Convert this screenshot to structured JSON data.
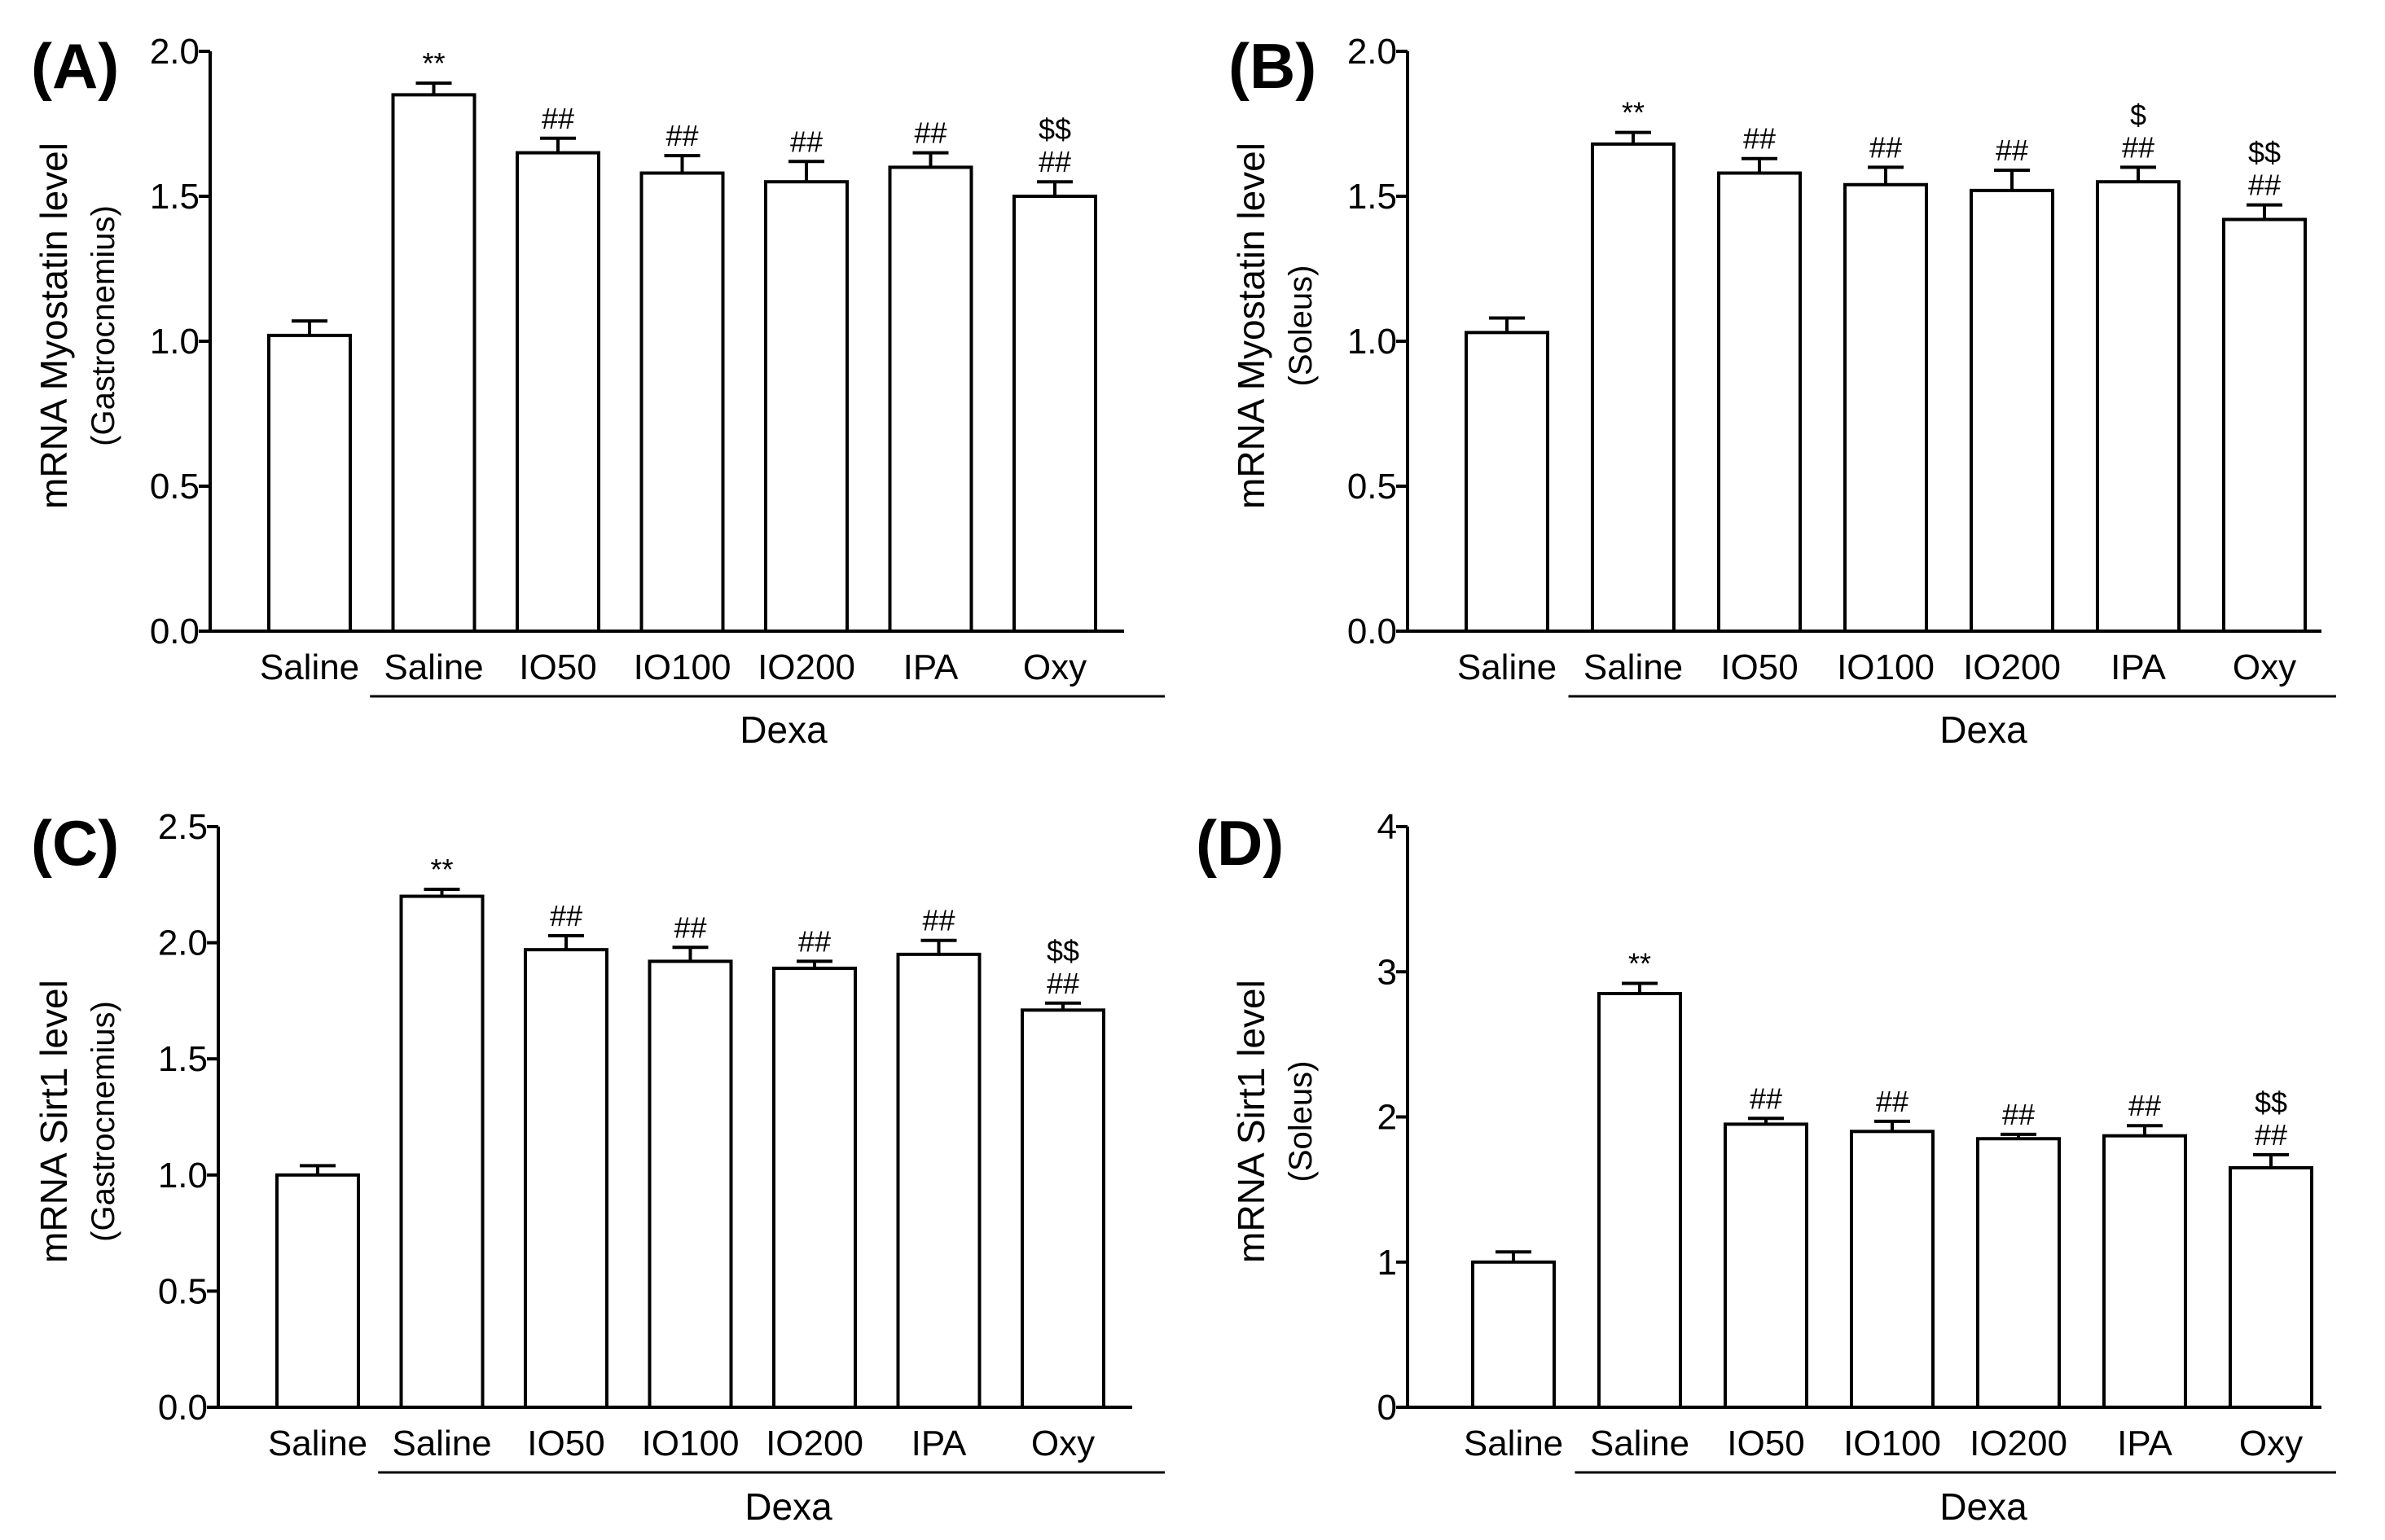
{
  "figure": {
    "panels": [
      {
        "id": "A",
        "panel_label": "(A)",
        "ylabel": "mRNA Myostatin level",
        "ysub": "(Gastrocnemius)",
        "group_label": "Dexa",
        "ticks": [
          "0.0",
          "0.5",
          "1.0",
          "1.5",
          "2.0"
        ]
      },
      {
        "id": "B",
        "panel_label": "(B)",
        "ylabel": "mRNA Myostatin level",
        "ysub": "(Soleus)",
        "group_label": "Dexa",
        "ticks": [
          "0.0",
          "0.5",
          "1.0",
          "1.5",
          "2.0"
        ]
      },
      {
        "id": "C",
        "panel_label": "(C)",
        "ylabel": "mRNA Sirt1 level",
        "ysub": "(Gastrocnemius)",
        "group_label": "Dexa",
        "ticks": [
          "0.0",
          "0.5",
          "1.0",
          "1.5",
          "2.0",
          "2.5"
        ]
      },
      {
        "id": "D",
        "panel_label": "(D)",
        "ylabel": "mRNA Sirt1 level",
        "ysub": "(Soleus)",
        "group_label": "Dexa",
        "ticks": [
          "0",
          "1",
          "2",
          "3",
          "4"
        ]
      }
    ]
  },
  "chart_data": [
    {
      "type": "bar",
      "panel": "(A)",
      "title": "",
      "xlabel": "Dexa",
      "ylabel": "mRNA Myostatin level (Gastrocnemius)",
      "categories": [
        "Saline",
        "Saline",
        "IO50",
        "IO100",
        "IO200",
        "IPA",
        "Oxy"
      ],
      "values": [
        1.02,
        1.85,
        1.65,
        1.58,
        1.55,
        1.6,
        1.5
      ],
      "errors": [
        0.05,
        0.04,
        0.05,
        0.06,
        0.07,
        0.05,
        0.05
      ],
      "annotations": [
        [],
        [
          "**"
        ],
        [
          "##"
        ],
        [
          "##"
        ],
        [
          "##"
        ],
        [
          "##"
        ],
        [
          "##",
          "$$"
        ]
      ],
      "ylim": [
        0,
        2.0
      ],
      "yticks": [
        0,
        0.5,
        1.0,
        1.5,
        2.0
      ],
      "group_bracket": {
        "label": "Dexa",
        "from_index": 1,
        "to_index": 6
      }
    },
    {
      "type": "bar",
      "panel": "(B)",
      "title": "",
      "xlabel": "Dexa",
      "ylabel": "mRNA Myostatin level (Soleus)",
      "categories": [
        "Saline",
        "Saline",
        "IO50",
        "IO100",
        "IO200",
        "IPA",
        "Oxy"
      ],
      "values": [
        1.03,
        1.68,
        1.58,
        1.54,
        1.52,
        1.55,
        1.42
      ],
      "errors": [
        0.05,
        0.04,
        0.05,
        0.06,
        0.07,
        0.05,
        0.05
      ],
      "annotations": [
        [],
        [
          "**"
        ],
        [
          "##"
        ],
        [
          "##"
        ],
        [
          "##"
        ],
        [
          "##",
          "$"
        ],
        [
          "##",
          "$$"
        ]
      ],
      "ylim": [
        0,
        2.0
      ],
      "yticks": [
        0,
        0.5,
        1.0,
        1.5,
        2.0
      ],
      "group_bracket": {
        "label": "Dexa",
        "from_index": 1,
        "to_index": 6
      }
    },
    {
      "type": "bar",
      "panel": "(C)",
      "title": "",
      "xlabel": "Dexa",
      "ylabel": "mRNA Sirt1 level (Gastrocnemius)",
      "categories": [
        "Saline",
        "Saline",
        "IO50",
        "IO100",
        "IO200",
        "IPA",
        "Oxy"
      ],
      "values": [
        1.0,
        2.2,
        1.97,
        1.92,
        1.89,
        1.95,
        1.71
      ],
      "errors": [
        0.04,
        0.03,
        0.06,
        0.06,
        0.03,
        0.06,
        0.03
      ],
      "annotations": [
        [],
        [
          "**"
        ],
        [
          "##"
        ],
        [
          "##"
        ],
        [
          "##"
        ],
        [
          "##"
        ],
        [
          "##",
          "$$"
        ]
      ],
      "ylim": [
        0,
        2.5
      ],
      "yticks": [
        0,
        0.5,
        1.0,
        1.5,
        2.0,
        2.5
      ],
      "group_bracket": {
        "label": "Dexa",
        "from_index": 1,
        "to_index": 6
      }
    },
    {
      "type": "bar",
      "panel": "(D)",
      "title": "",
      "xlabel": "Dexa",
      "ylabel": "mRNA Sirt1 level (Soleus)",
      "categories": [
        "Saline",
        "Saline",
        "IO50",
        "IO100",
        "IO200",
        "IPA",
        "Oxy"
      ],
      "values": [
        1.0,
        2.85,
        1.95,
        1.9,
        1.85,
        1.87,
        1.65
      ],
      "errors": [
        0.07,
        0.07,
        0.04,
        0.07,
        0.03,
        0.07,
        0.09
      ],
      "annotations": [
        [],
        [
          "**"
        ],
        [
          "##"
        ],
        [
          "##"
        ],
        [
          "##"
        ],
        [
          "##"
        ],
        [
          "##",
          "$$"
        ]
      ],
      "ylim": [
        0,
        4
      ],
      "yticks": [
        0,
        1,
        2,
        3,
        4
      ],
      "group_bracket": {
        "label": "Dexa",
        "from_index": 1,
        "to_index": 6
      }
    }
  ]
}
